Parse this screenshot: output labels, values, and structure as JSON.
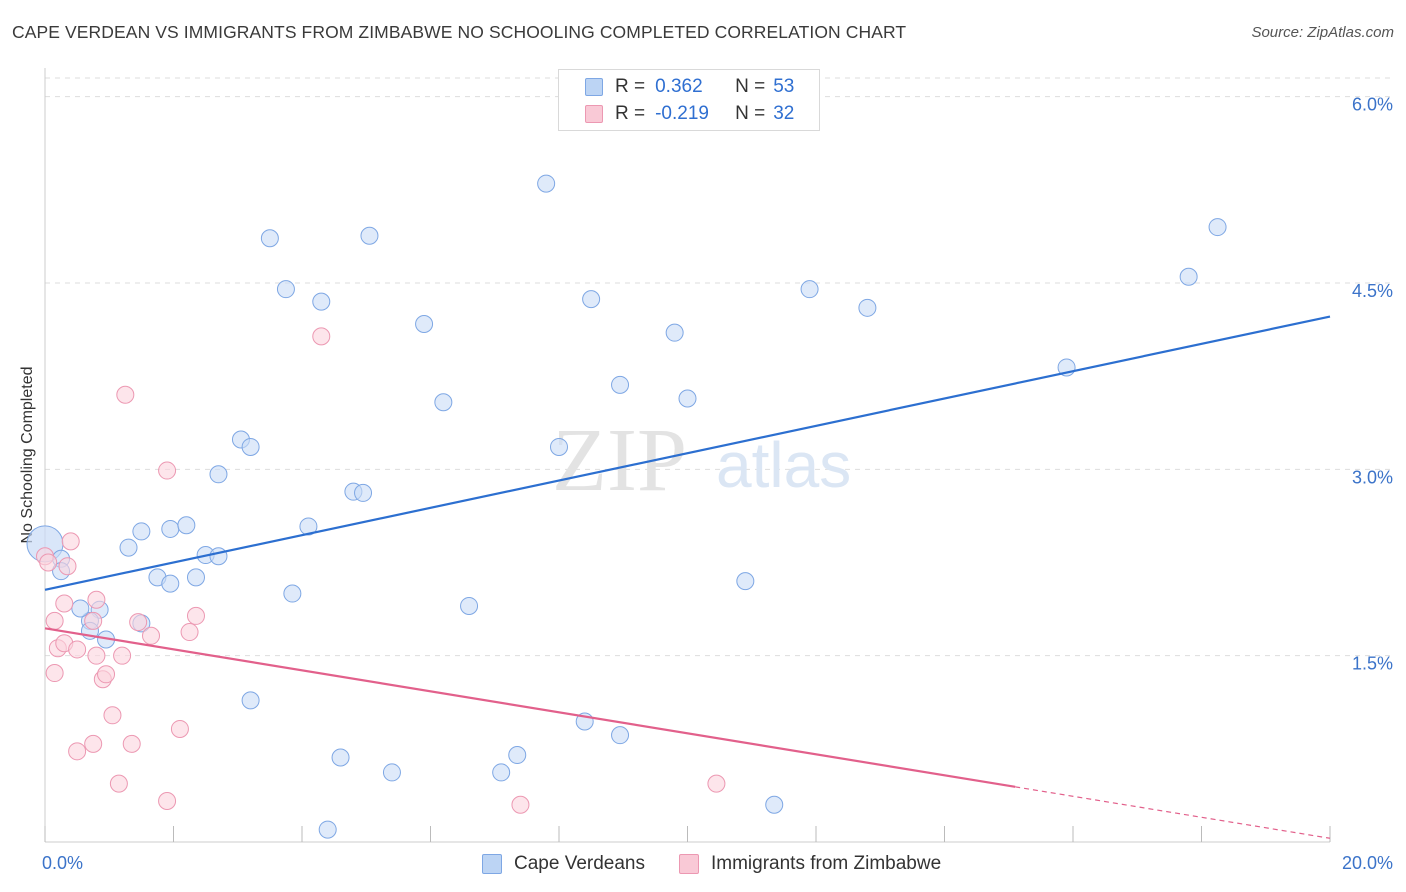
{
  "title": "CAPE VERDEAN VS IMMIGRANTS FROM ZIMBABWE NO SCHOOLING COMPLETED CORRELATION CHART",
  "source": "Source: ZipAtlas.com",
  "watermark": {
    "zip": "ZIP",
    "atlas": "atlas"
  },
  "legend": {
    "r_label": "R =",
    "n_label": "N =",
    "rows": [
      {
        "r": "0.362",
        "n": "53",
        "color": "#bcd4f4"
      },
      {
        "r": "-0.219",
        "n": "32",
        "color": "#f9c9d6"
      }
    ]
  },
  "bottom_legend": [
    "Cape Verdeans",
    "Immigrants from Zimbabwe"
  ],
  "chart_data": {
    "type": "scatter",
    "title": "CAPE VERDEAN VS IMMIGRANTS FROM ZIMBABWE NO SCHOOLING COMPLETED CORRELATION CHART",
    "xlabel": "",
    "ylabel": "No Schooling Completed",
    "xlim": [
      0,
      20
    ],
    "ylim": [
      0,
      6.15
    ],
    "x_tick_labels": [
      "0.0%",
      "20.0%"
    ],
    "y_ticks": [
      1.5,
      3.0,
      4.5,
      6.0
    ],
    "y_tick_labels": [
      "1.5%",
      "3.0%",
      "4.5%",
      "6.0%"
    ],
    "series": [
      {
        "name": "Cape Verdeans",
        "color": "#7ea7e4",
        "fill": "#c9dcf6",
        "line_color": "#2c6fd0",
        "trend": {
          "x": [
            0,
            20
          ],
          "y": [
            2.03,
            4.23
          ],
          "solid_until": 20
        },
        "points": [
          [
            0.0,
            2.4
          ],
          [
            0.25,
            2.28
          ],
          [
            0.25,
            2.18
          ],
          [
            0.85,
            1.87
          ],
          [
            0.7,
            1.78
          ],
          [
            0.55,
            1.88
          ],
          [
            0.7,
            1.7
          ],
          [
            0.95,
            1.63
          ],
          [
            1.5,
            1.76
          ],
          [
            1.5,
            2.5
          ],
          [
            1.3,
            2.37
          ],
          [
            1.75,
            2.13
          ],
          [
            1.95,
            2.08
          ],
          [
            1.95,
            2.52
          ],
          [
            2.2,
            2.55
          ],
          [
            2.35,
            2.13
          ],
          [
            2.5,
            2.31
          ],
          [
            2.7,
            2.3
          ],
          [
            2.7,
            2.96
          ],
          [
            3.05,
            3.24
          ],
          [
            3.2,
            3.18
          ],
          [
            3.2,
            1.14
          ],
          [
            3.5,
            4.86
          ],
          [
            3.75,
            4.45
          ],
          [
            3.85,
            2.0
          ],
          [
            4.1,
            2.54
          ],
          [
            4.3,
            4.35
          ],
          [
            4.4,
            0.1
          ],
          [
            4.6,
            0.68
          ],
          [
            4.8,
            2.82
          ],
          [
            4.95,
            2.81
          ],
          [
            5.05,
            4.88
          ],
          [
            5.4,
            0.56
          ],
          [
            5.9,
            4.17
          ],
          [
            6.2,
            3.54
          ],
          [
            6.6,
            1.9
          ],
          [
            7.1,
            0.56
          ],
          [
            7.35,
            0.7
          ],
          [
            7.8,
            5.3
          ],
          [
            8.0,
            3.18
          ],
          [
            8.4,
            0.97
          ],
          [
            8.5,
            4.37
          ],
          [
            8.95,
            0.86
          ],
          [
            8.95,
            3.68
          ],
          [
            9.8,
            4.1
          ],
          [
            10.0,
            3.57
          ],
          [
            10.9,
            2.1
          ],
          [
            11.35,
            0.3
          ],
          [
            11.9,
            4.45
          ],
          [
            12.8,
            4.3
          ],
          [
            15.9,
            3.82
          ],
          [
            17.8,
            4.55
          ],
          [
            18.25,
            4.95
          ]
        ]
      },
      {
        "name": "Immigrants from Zimbabwe",
        "color": "#ec98b2",
        "fill": "#fbd3de",
        "line_color": "#e2608b",
        "trend": {
          "x": [
            0,
            20
          ],
          "y": [
            1.72,
            0.03
          ],
          "solid_until": 15.1
        },
        "points": [
          [
            0.0,
            2.3
          ],
          [
            0.15,
            1.78
          ],
          [
            0.15,
            1.36
          ],
          [
            0.2,
            1.56
          ],
          [
            0.3,
            1.92
          ],
          [
            0.3,
            1.6
          ],
          [
            0.35,
            2.22
          ],
          [
            0.4,
            2.42
          ],
          [
            0.5,
            1.55
          ],
          [
            0.5,
            0.73
          ],
          [
            0.75,
            0.79
          ],
          [
            0.75,
            1.78
          ],
          [
            0.8,
            1.5
          ],
          [
            0.8,
            1.95
          ],
          [
            0.9,
            1.31
          ],
          [
            0.95,
            1.35
          ],
          [
            1.05,
            1.02
          ],
          [
            1.15,
            0.47
          ],
          [
            1.2,
            1.5
          ],
          [
            1.25,
            3.6
          ],
          [
            1.35,
            0.79
          ],
          [
            1.45,
            1.77
          ],
          [
            1.65,
            1.66
          ],
          [
            1.9,
            0.33
          ],
          [
            1.9,
            2.99
          ],
          [
            2.1,
            0.91
          ],
          [
            2.25,
            1.69
          ],
          [
            2.35,
            1.82
          ],
          [
            4.3,
            4.07
          ],
          [
            7.4,
            0.3
          ],
          [
            10.45,
            0.47
          ],
          [
            0.05,
            2.25
          ]
        ]
      }
    ]
  }
}
